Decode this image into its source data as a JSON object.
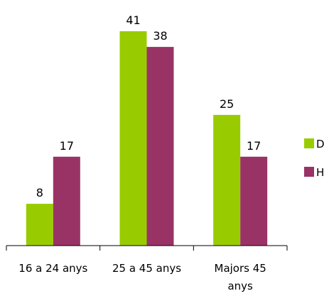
{
  "chart_data": {
    "type": "bar",
    "categories": [
      [
        "16 a 24 anys"
      ],
      [
        "25 a 45 anys"
      ],
      [
        "Majors 45",
        "anys"
      ]
    ],
    "series": [
      {
        "name": "D",
        "color": "#99cc00",
        "values": [
          8,
          41,
          25
        ]
      },
      {
        "name": "H",
        "color": "#993366",
        "values": [
          17,
          38,
          17
        ]
      }
    ],
    "ylim": [
      0,
      41
    ],
    "grid": false,
    "legend": "right",
    "title": "",
    "xlabel": "",
    "ylabel": ""
  }
}
